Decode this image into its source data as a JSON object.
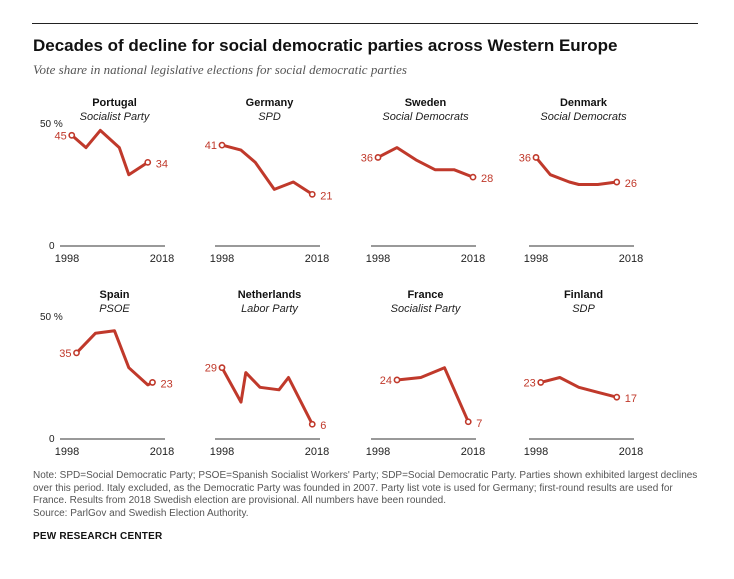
{
  "title": "Decades of decline for social democratic parties across Western Europe",
  "subtitle": "Vote share in national legislative elections for social democratic parties",
  "note": "Note: SPD=Social Democratic Party; PSOE=Spanish Socialist Workers' Party; SDP=Social Democratic Party. Parties shown exhibited largest declines over this period. Italy excluded, as the Democratic Party was founded in 2007. Party list vote is used for Germany; first-round results are used for France. Results from 2018 Swedish election are provisional. All numbers have been rounded.",
  "source": "Source: ParlGov and Swedish Election Authority.",
  "brand": "PEW RESEARCH CENTER",
  "colors": {
    "line": "#c0392b",
    "label": "#c0392b",
    "axis": "#333333"
  },
  "chart_data": [
    {
      "type": "line",
      "country": "Portugal",
      "party": "Socialist Party",
      "x": [
        1999,
        2002,
        2005,
        2009,
        2011,
        2015
      ],
      "y": [
        45,
        40,
        47,
        40,
        29,
        34
      ],
      "start_label": "45",
      "end_label": "34",
      "ytick_top": "50 %",
      "ytick_bottom": "0",
      "xtick_start": "1998",
      "xtick_end": "2018",
      "xlim": [
        1998,
        2018
      ],
      "ylim": [
        0,
        50
      ]
    },
    {
      "type": "line",
      "country": "Germany",
      "party": "SPD",
      "x": [
        1998,
        2002,
        2005,
        2009,
        2013,
        2017
      ],
      "y": [
        41,
        39,
        34,
        23,
        26,
        21
      ],
      "start_label": "41",
      "end_label": "21",
      "xtick_start": "1998",
      "xtick_end": "2018",
      "xlim": [
        1998,
        2018
      ],
      "ylim": [
        0,
        50
      ]
    },
    {
      "type": "line",
      "country": "Sweden",
      "party": "Social Democrats",
      "x": [
        1998,
        2002,
        2006,
        2010,
        2014,
        2018
      ],
      "y": [
        36,
        40,
        35,
        31,
        31,
        28
      ],
      "start_label": "36",
      "end_label": "28",
      "xtick_start": "1998",
      "xtick_end": "2018",
      "xlim": [
        1998,
        2018
      ],
      "ylim": [
        0,
        50
      ]
    },
    {
      "type": "line",
      "country": "Denmark",
      "party": "Social Democrats",
      "x": [
        1998,
        2001,
        2005,
        2007,
        2011,
        2015
      ],
      "y": [
        36,
        29,
        26,
        25,
        25,
        26
      ],
      "start_label": "36",
      "end_label": "26",
      "xtick_start": "1998",
      "xtick_end": "2018",
      "xlim": [
        1998,
        2018
      ],
      "ylim": [
        0,
        50
      ]
    },
    {
      "type": "line",
      "country": "Spain",
      "party": "PSOE",
      "x": [
        2000,
        2004,
        2008,
        2011,
        2015,
        2016
      ],
      "y": [
        35,
        43,
        44,
        29,
        22,
        23
      ],
      "start_label": "35",
      "end_label": "23",
      "ytick_top": "50 %",
      "ytick_bottom": "0",
      "xtick_start": "1998",
      "xtick_end": "2018",
      "xlim": [
        1998,
        2018
      ],
      "ylim": [
        0,
        50
      ]
    },
    {
      "type": "line",
      "country": "Netherlands",
      "party": "Labor Party",
      "x": [
        1998,
        2002,
        2003,
        2006,
        2010,
        2012,
        2017
      ],
      "y": [
        29,
        15,
        27,
        21,
        20,
        25,
        6
      ],
      "start_label": "29",
      "end_label": "6",
      "xtick_start": "1998",
      "xtick_end": "2018",
      "xlim": [
        1998,
        2018
      ],
      "ylim": [
        0,
        50
      ]
    },
    {
      "type": "line",
      "country": "France",
      "party": "Socialist Party",
      "x": [
        2002,
        2007,
        2012,
        2017
      ],
      "y": [
        24,
        25,
        29,
        7
      ],
      "start_label": "24",
      "end_label": "7",
      "xtick_start": "1998",
      "xtick_end": "2018",
      "xlim": [
        1998,
        2018
      ],
      "ylim": [
        0,
        50
      ]
    },
    {
      "type": "line",
      "country": "Finland",
      "party": "SDP",
      "x": [
        1999,
        2003,
        2007,
        2011,
        2015
      ],
      "y": [
        23,
        25,
        21,
        19,
        17
      ],
      "start_label": "23",
      "end_label": "17",
      "xtick_start": "1998",
      "xtick_end": "2018",
      "xlim": [
        1998,
        2018
      ],
      "ylim": [
        0,
        50
      ]
    }
  ]
}
